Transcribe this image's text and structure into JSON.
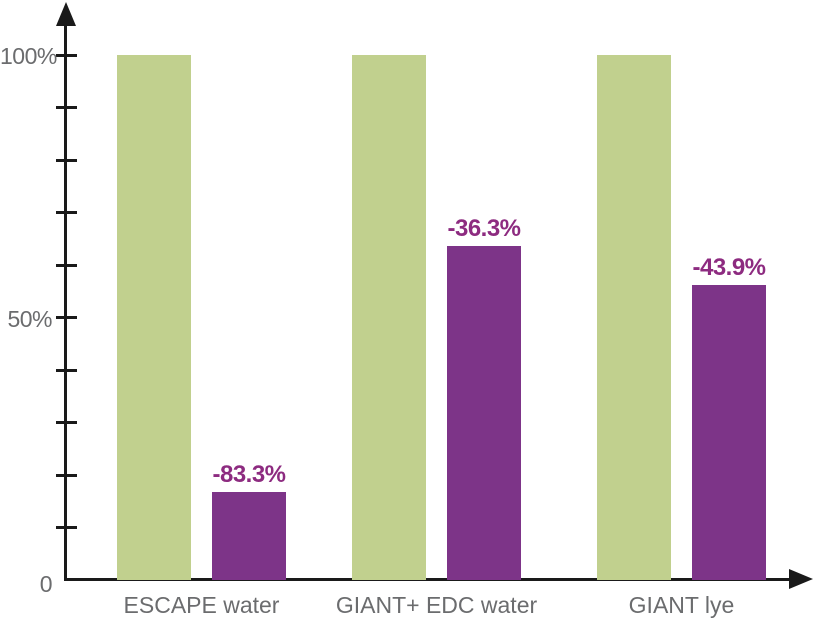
{
  "chart_data": {
    "type": "bar",
    "title": "",
    "xlabel": "",
    "ylabel": "",
    "categories": [
      "ESCAPE water",
      "GIANT+ EDC water",
      "GIANT lye"
    ],
    "series": [
      {
        "name": "baseline",
        "color": "#c1d08e",
        "values": [
          100,
          100,
          100
        ],
        "labels": [
          "",
          "",
          ""
        ]
      },
      {
        "name": "reduced",
        "color": "#7d3488",
        "values": [
          16.7,
          63.7,
          56.1
        ],
        "labels": [
          "-83.3%",
          "-36.3%",
          "-43.9%"
        ]
      }
    ],
    "ylim": [
      0,
      100
    ],
    "yticks_labeled": [
      {
        "value": 0,
        "label": "0"
      },
      {
        "value": 50,
        "label": "50%"
      },
      {
        "value": 100,
        "label": "100%"
      }
    ],
    "ytick_minor_step": 10,
    "grid": false,
    "legend": "none",
    "colors": {
      "axis": "#1a1a1a",
      "tick_label": "#6b6c6e",
      "value_label": "#8d2b80",
      "bar_green": "#c1d08e",
      "bar_purple": "#7d3488"
    }
  }
}
